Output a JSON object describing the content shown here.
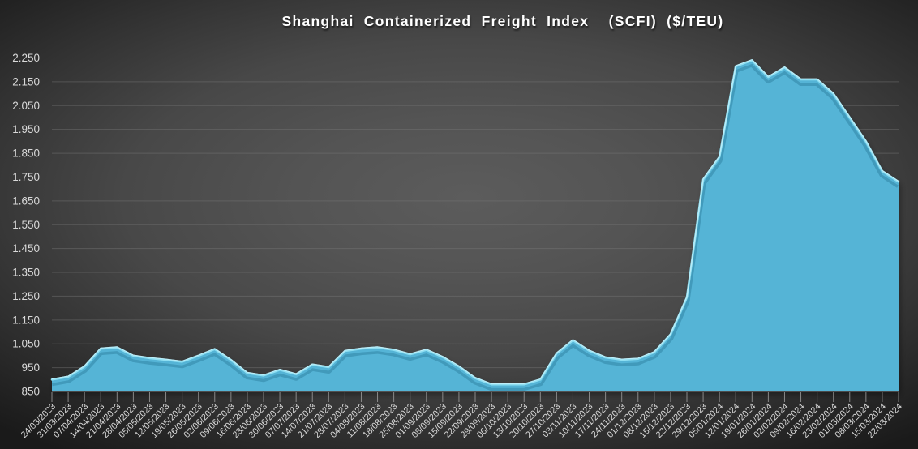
{
  "chart_data": {
    "type": "area",
    "title": "Shanghai Containerized Freight Index  (SCFI) ($/TEU)",
    "xlabel": "",
    "ylabel": "",
    "legend": "none",
    "grid": true,
    "ylim": [
      850,
      2250
    ],
    "y_tick_step": 100,
    "y_tick_labels": [
      "850",
      "950",
      "1.050",
      "1.150",
      "1.250",
      "1.350",
      "1.450",
      "1.550",
      "1.650",
      "1.750",
      "1.850",
      "1.950",
      "2.050",
      "2.150",
      "2.250"
    ],
    "categories": [
      "24/03/2023",
      "31/03/2023",
      "07/04/2023",
      "14/04/2023",
      "21/04/2023",
      "28/04/2023",
      "05/05/2023",
      "12/05/2023",
      "19/05/2023",
      "26/05/2023",
      "02/06/2023",
      "09/06/2023",
      "16/06/2023",
      "23/06/2023",
      "30/06/2023",
      "07/07/2023",
      "14/07/2023",
      "21/07/2023",
      "28/07/2023",
      "04/08/2023",
      "11/08/2023",
      "18/08/2023",
      "25/08/2023",
      "01/09/2023",
      "08/09/2023",
      "15/09/2023",
      "22/09/2023",
      "29/09/2023",
      "06/10/2023",
      "13/10/2023",
      "20/10/2023",
      "27/10/2023",
      "03/11/2023",
      "10/11/2023",
      "17/11/2023",
      "24/11/2023",
      "01/12/2023",
      "08/12/2023",
      "15/12/2023",
      "22/12/2023",
      "29/12/2023",
      "05/01/2024",
      "12/01/2024",
      "19/01/2024",
      "26/01/2024",
      "02/02/2024",
      "09/02/2024",
      "16/02/2024",
      "23/02/2024",
      "01/03/2024",
      "08/03/2024",
      "15/03/2024",
      "22/03/2024"
    ],
    "series": [
      {
        "name": "SCFI ($/TEU)",
        "values": [
          900,
          912,
          955,
          1030,
          1035,
          1000,
          990,
          983,
          975,
          1000,
          1028,
          982,
          928,
          917,
          941,
          922,
          963,
          952,
          1020,
          1030,
          1035,
          1025,
          1006,
          1025,
          995,
          955,
          906,
          880,
          880,
          880,
          900,
          1010,
          1065,
          1021,
          993,
          983,
          987,
          1015,
          1090,
          1245,
          1740,
          1835,
          2215,
          2240,
          2170,
          2210,
          2160,
          2160,
          2100,
          2000,
          1900,
          1775,
          1730
        ]
      }
    ],
    "colors": {
      "area_fill": "#54b4d6",
      "area_highlight": "#8fdff2",
      "area_highlight_bright": "#c9f1fa",
      "bevel_shadow": "#2d7f9f",
      "background_center": "#5c5c5c",
      "background_edge": "#1a1a1a",
      "gridline": "#7a7a7a",
      "tick": "#a0a0a0",
      "label_text": "#d9d9d9",
      "title_text": "#ffffff"
    }
  }
}
